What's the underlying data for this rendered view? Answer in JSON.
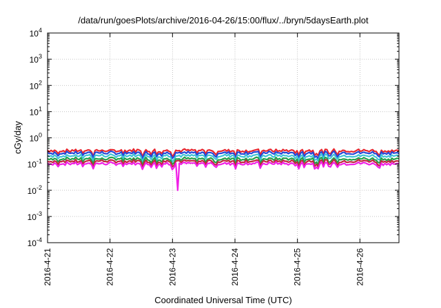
{
  "chart_data": {
    "type": "line",
    "title": "/data/run/goesPlots/archive/2016-04-26/15:00/flux/../bryn/5daysEarth.plot",
    "xlabel": "Coordinated Universal Time (UTC)",
    "ylabel": "cGy/day",
    "y_scale": "log",
    "ylim": [
      0.0001,
      10000
    ],
    "xlim": [
      "2016-04-21T00:00",
      "2016-04-26T15:00"
    ],
    "grid": true,
    "x_ticks": [
      "2016-4-21",
      "2016-4-22",
      "2016-4-23",
      "2016-4-24",
      "2016-4-25",
      "2016-4-26"
    ],
    "y_ticks": [
      {
        "base": "10",
        "exp": "-4"
      },
      {
        "base": "10",
        "exp": "-3"
      },
      {
        "base": "10",
        "exp": "-2"
      },
      {
        "base": "10",
        "exp": "-1"
      },
      {
        "base": "10",
        "exp": "0"
      },
      {
        "base": "10",
        "exp": "1"
      },
      {
        "base": "10",
        "exp": "2"
      },
      {
        "base": "10",
        "exp": "3"
      },
      {
        "base": "10",
        "exp": "4"
      }
    ],
    "series": [
      {
        "color": "#e8252e",
        "level": 0.33
      },
      {
        "color": "#2348d8",
        "level": 0.27
      },
      {
        "color": "#3fc3d6",
        "level": 0.21
      },
      {
        "color": "#22a04a",
        "level": 0.16
      },
      {
        "color": "#c0243c",
        "level": 0.13
      },
      {
        "color": "#f01fe6",
        "level": 0.105
      }
    ],
    "annotations": [
      {
        "series_color": "#f01fe6",
        "x": "2016-04-23T02:00",
        "y": 0.01
      }
    ]
  }
}
